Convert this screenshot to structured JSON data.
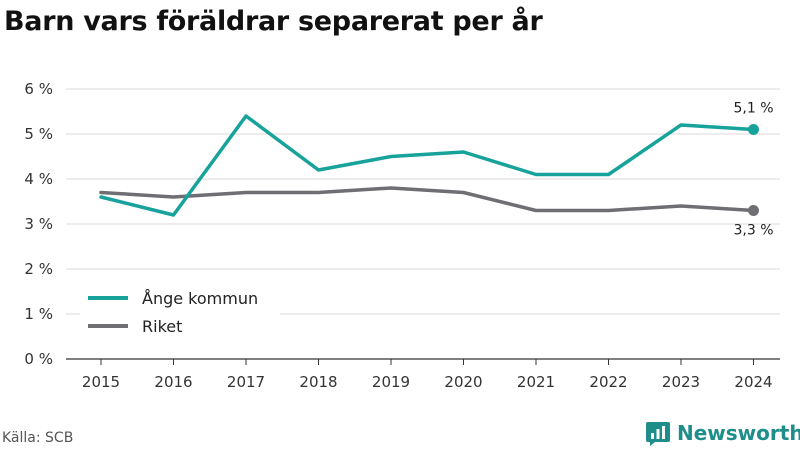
{
  "title": "Barn vars föräldrar separerat per år",
  "source": "Källa: SCB",
  "brand": {
    "name": "Newsworthy",
    "icon": "newsworthy-logo-icon",
    "color": "#1f8e8a"
  },
  "chart_data": {
    "type": "line",
    "title": "Barn vars föräldrar separerat per år",
    "xlabel": "",
    "ylabel": "",
    "x": [
      "2015",
      "2016",
      "2017",
      "2018",
      "2019",
      "2020",
      "2021",
      "2022",
      "2023",
      "2024"
    ],
    "ylim": [
      0,
      6
    ],
    "yticks": [
      0,
      1,
      2,
      3,
      4,
      5,
      6
    ],
    "ytick_labels": [
      "0 %",
      "1 %",
      "2 %",
      "3 %",
      "4 %",
      "5 %",
      "6 %"
    ],
    "grid": "horizontal",
    "legend_position": "bottom-left",
    "series": [
      {
        "name": "Ånge kommun",
        "color": "#17a39c",
        "values": [
          3.6,
          3.2,
          5.4,
          4.2,
          4.5,
          4.6,
          4.1,
          4.1,
          5.2,
          5.1
        ],
        "end_label": "5,1 %"
      },
      {
        "name": "Riket",
        "color": "#6e6e73",
        "values": [
          3.7,
          3.6,
          3.7,
          3.7,
          3.8,
          3.7,
          3.3,
          3.3,
          3.4,
          3.3
        ],
        "end_label": "3,3 %"
      }
    ]
  }
}
